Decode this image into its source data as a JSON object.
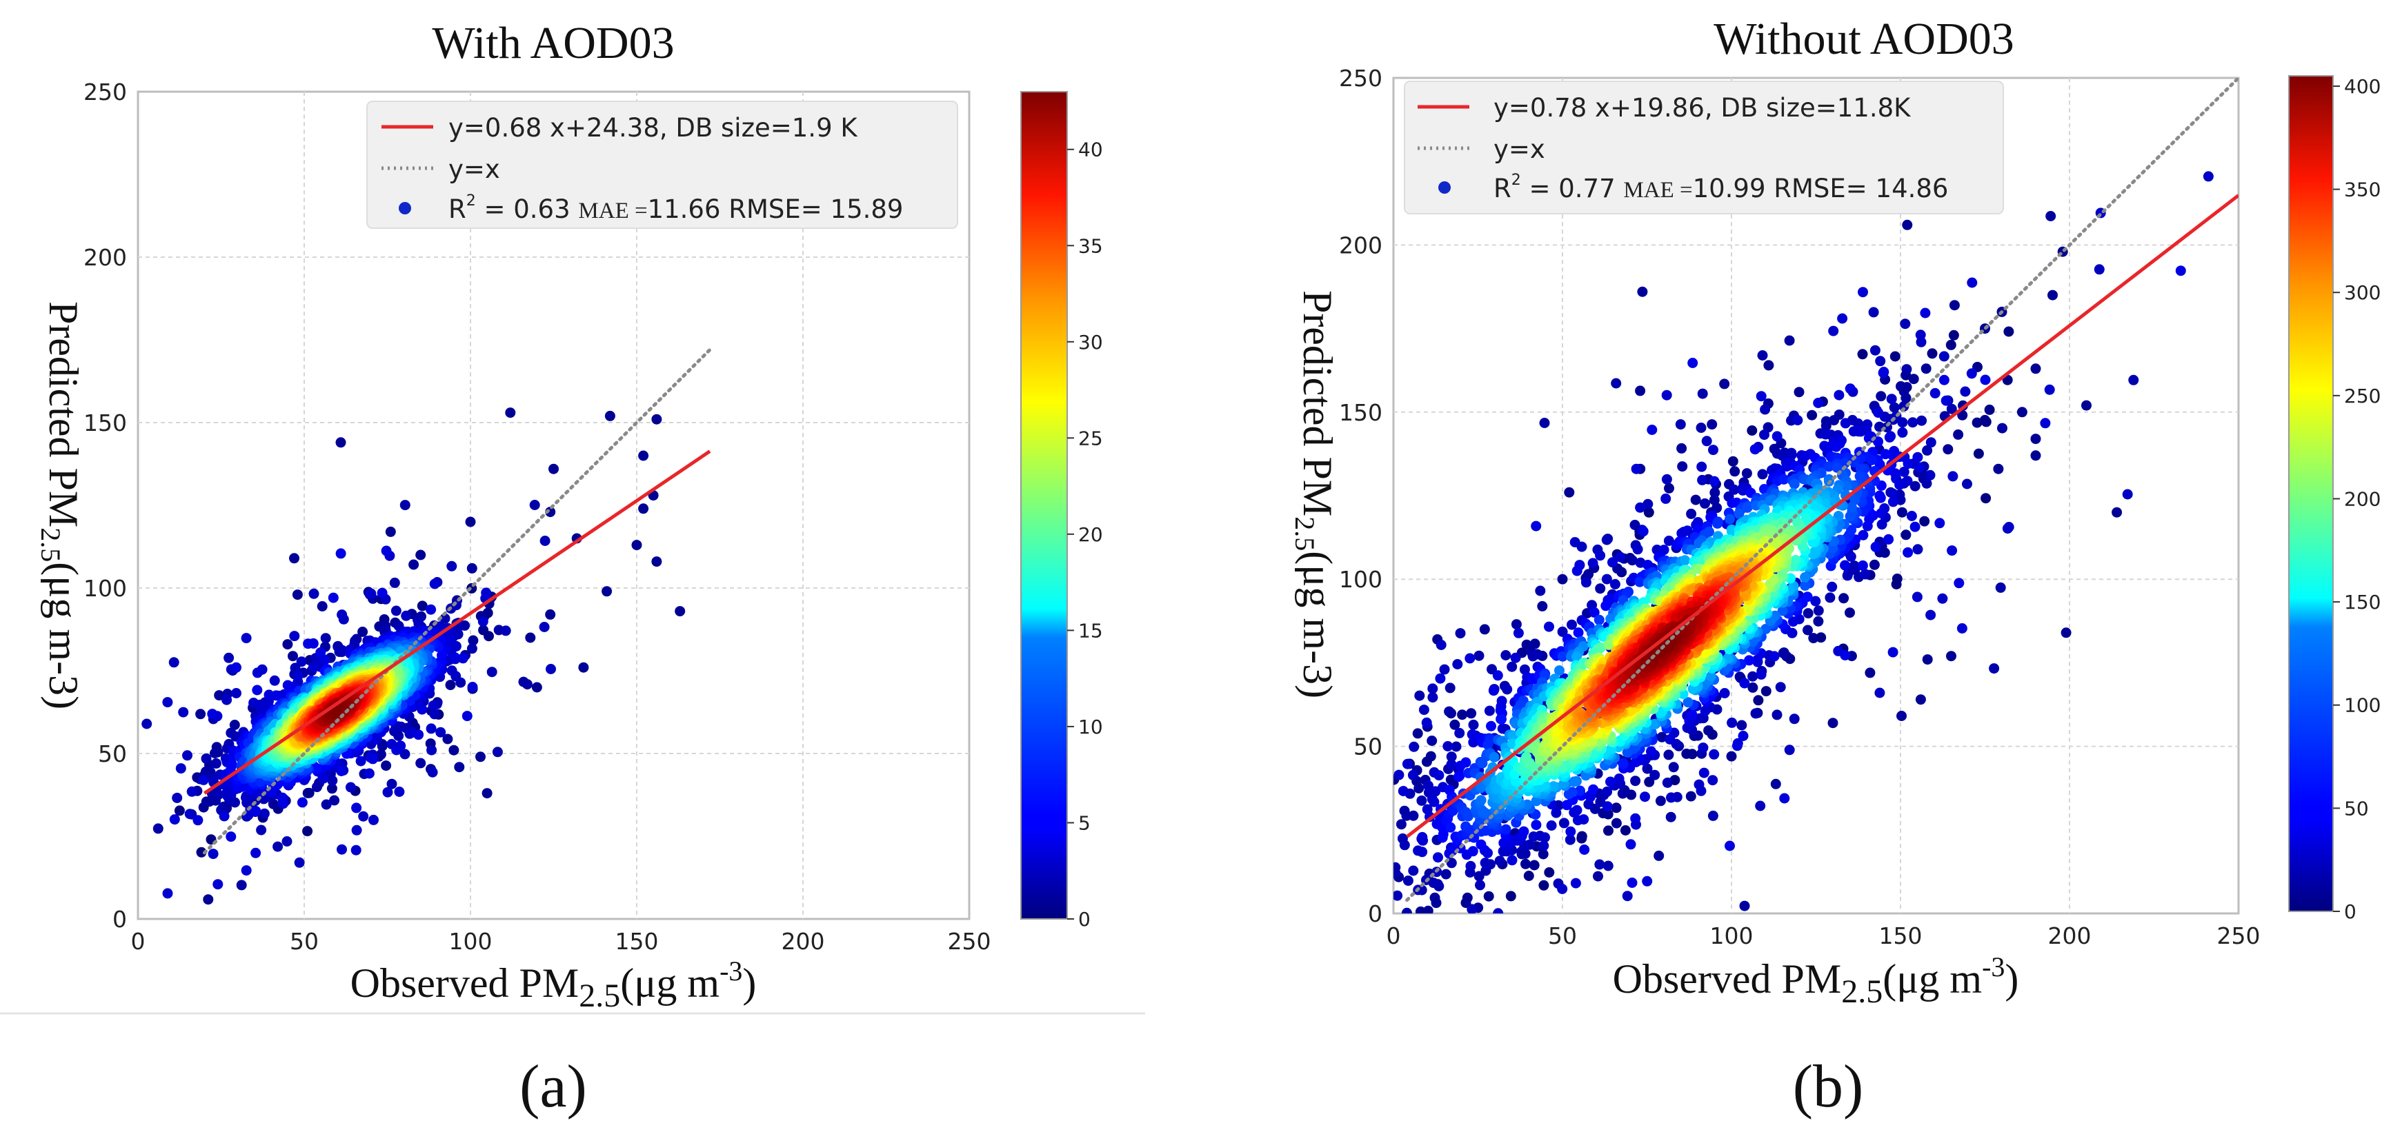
{
  "chart_data": [
    {
      "type": "scatter",
      "panel_label": "(a)",
      "title": "With AOD03",
      "xlabel": {
        "prefix": "Observed PM",
        "sub": "2.5",
        "unit_open": "(μg m",
        "unit_sup": "-3",
        "unit_close": ")"
      },
      "ylabel": {
        "prefix": "Predicted PM",
        "sub": "2.5",
        "suffix": "(μg m-3)"
      },
      "xlim": [
        0,
        250
      ],
      "ylim": [
        0,
        250
      ],
      "xticks": [
        0,
        50,
        100,
        150,
        200,
        250
      ],
      "yticks": [
        0,
        50,
        100,
        150,
        200,
        250
      ],
      "grid": true,
      "legend": {
        "position": "top-right",
        "fit_label": "y=0.68 x+24.38, DB size=1.9 K",
        "identity_label": "y=x",
        "stats": {
          "r2_label": "R",
          "r2_sup": "2",
          "r2_value": " = 0.63 ",
          "mae_label": "MAE =",
          "mae_value": "11.66",
          "rmse_text": " RMSE= 15.89"
        }
      },
      "fit_line": {
        "slope": 0.68,
        "intercept": 24.38,
        "x_range": [
          20,
          172
        ]
      },
      "identity_line": {
        "x_range": [
          20,
          172
        ]
      },
      "colorbar": {
        "min": 0,
        "max": 43,
        "ticks": [
          0,
          5,
          10,
          15,
          20,
          25,
          30,
          35,
          40
        ],
        "colormap": "jet"
      },
      "density": {
        "count": 1900,
        "center_x": 60,
        "center_y": 63,
        "sigma_major": 18,
        "sigma_minor": 6,
        "angle_deg": 34,
        "spread_x": 18,
        "spread_y": 16
      },
      "outliers": [
        [
          61,
          144
        ],
        [
          47,
          109
        ],
        [
          112,
          153
        ],
        [
          142,
          152
        ],
        [
          156,
          151
        ],
        [
          163,
          93
        ],
        [
          152,
          124
        ],
        [
          141,
          99
        ],
        [
          103,
          49
        ],
        [
          105,
          38
        ],
        [
          95,
          51
        ],
        [
          88,
          53
        ],
        [
          150,
          113
        ],
        [
          155,
          128
        ],
        [
          125,
          136
        ],
        [
          124,
          123
        ],
        [
          100,
          120
        ],
        [
          76,
          117
        ],
        [
          30,
          40
        ],
        [
          37,
          52
        ],
        [
          48,
          98
        ],
        [
          85,
          110
        ],
        [
          120,
          70
        ],
        [
          132,
          115
        ],
        [
          118,
          85
        ],
        [
          45,
          83
        ],
        [
          134,
          76
        ],
        [
          124,
          92
        ],
        [
          156,
          108
        ],
        [
          152,
          140
        ]
      ]
    },
    {
      "type": "scatter",
      "panel_label": "(b)",
      "title": "Without AOD03",
      "xlabel": {
        "prefix": "Observed PM",
        "sub": "2.5",
        "unit_open": "(μg m",
        "unit_sup": "-3",
        "unit_close": ")"
      },
      "ylabel": {
        "prefix": "Predicted PM",
        "sub": "2.5",
        "suffix": "(μg m-3)"
      },
      "xlim": [
        0,
        250
      ],
      "ylim": [
        0,
        250
      ],
      "xticks": [
        0,
        50,
        100,
        150,
        200,
        250
      ],
      "yticks": [
        0,
        50,
        100,
        150,
        200,
        250
      ],
      "grid": true,
      "legend": {
        "position": "top-left",
        "fit_label": "y=0.78 x+19.86, DB size=11.8K",
        "identity_label": "y=x",
        "stats": {
          "r2_label": "R",
          "r2_sup": "2",
          "r2_value": " = 0.77 ",
          "mae_label": "MAE =",
          "mae_value": "10.99",
          "rmse_text": " RMSE= 14.86"
        }
      },
      "fit_line": {
        "slope": 0.78,
        "intercept": 19.86,
        "x_range": [
          4,
          250
        ]
      },
      "identity_line": {
        "x_range": [
          4,
          250
        ]
      },
      "colorbar": {
        "min": 0,
        "max": 405,
        "ticks": [
          0,
          50,
          100,
          150,
          200,
          250,
          300,
          350,
          400
        ],
        "colormap": "jet"
      },
      "density": {
        "count": 3000,
        "center_x": 80,
        "center_y": 80,
        "sigma_major": 42,
        "sigma_minor": 10,
        "angle_deg": 42,
        "spread_x": 38,
        "spread_y": 30
      },
      "outliers": [
        [
          152,
          206
        ],
        [
          175,
          211
        ],
        [
          198,
          198
        ],
        [
          195,
          185
        ],
        [
          205,
          152
        ],
        [
          214,
          120
        ],
        [
          199,
          84
        ],
        [
          190,
          142
        ],
        [
          190,
          137
        ],
        [
          190,
          163
        ],
        [
          175,
          175
        ],
        [
          165,
          77
        ],
        [
          158,
          76
        ],
        [
          130,
          57
        ],
        [
          141,
          72
        ],
        [
          13,
          82
        ],
        [
          27,
          85
        ],
        [
          26,
          28
        ],
        [
          17,
          40
        ],
        [
          36,
          24
        ],
        [
          52,
          126
        ],
        [
          50,
          100
        ],
        [
          73,
          133
        ],
        [
          111,
          164
        ],
        [
          120,
          156
        ],
        [
          180,
          180
        ],
        [
          166,
          182
        ],
        [
          38,
          78
        ],
        [
          62,
          30
        ],
        [
          66,
          27
        ],
        [
          120,
          95
        ],
        [
          135,
          90
        ],
        [
          94,
          120
        ],
        [
          100,
          47
        ],
        [
          156,
          64
        ],
        [
          186,
          150
        ]
      ]
    }
  ]
}
